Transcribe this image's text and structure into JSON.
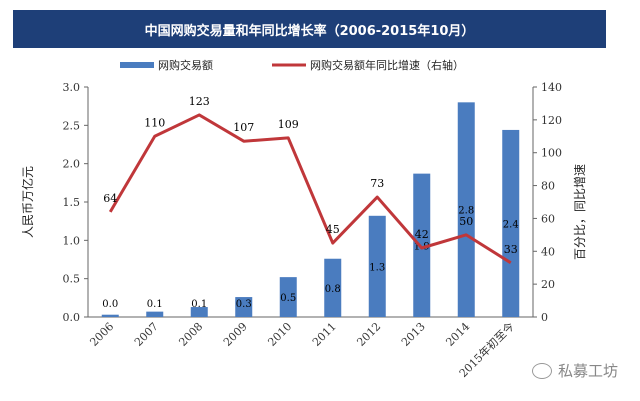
{
  "title": "中国网购交易量和年同比增长率（2006-2015年10月）",
  "watermark": "私募工坊",
  "colors": {
    "title_bg": "#1e3f78",
    "bar": "#4a7cbf",
    "line": "#c0373a"
  },
  "chart_data": {
    "type": "bar+line",
    "categories": [
      "2006",
      "2007",
      "2008",
      "2009",
      "2010",
      "2011",
      "2012",
      "2013",
      "2014",
      "2015年初至今"
    ],
    "series": [
      {
        "name": "网购交易额",
        "type": "bar",
        "axis": "left",
        "values": [
          0.0,
          0.1,
          0.1,
          0.3,
          0.5,
          0.8,
          1.3,
          1.9,
          2.8,
          2.4
        ],
        "labels": [
          "0.0",
          "0.1",
          "0.1",
          "0.3",
          "0.5",
          "0.8",
          "1.3",
          "1.9",
          "2.8",
          "2.4"
        ],
        "bar_values": [
          0.03,
          0.07,
          0.13,
          0.26,
          0.52,
          0.76,
          1.32,
          1.87,
          2.8,
          2.44
        ]
      },
      {
        "name": "网购交易额年同比增速（右轴）",
        "type": "line",
        "axis": "right",
        "values": [
          64,
          110,
          123,
          107,
          109,
          45,
          73,
          42,
          50,
          33
        ]
      }
    ],
    "ylabel_left": "人民币万亿元",
    "ylabel_right": "百分比，同比增速",
    "ylim_left": [
      0,
      3.0
    ],
    "ylim_right": [
      0,
      140
    ],
    "yticks_left": [
      "0.0",
      "0.5",
      "1.0",
      "1.5",
      "2.0",
      "2.5",
      "3.0"
    ],
    "yticks_right": [
      "0",
      "20",
      "40",
      "60",
      "80",
      "100",
      "120",
      "140"
    ],
    "grid": false,
    "legend_position": "top"
  }
}
